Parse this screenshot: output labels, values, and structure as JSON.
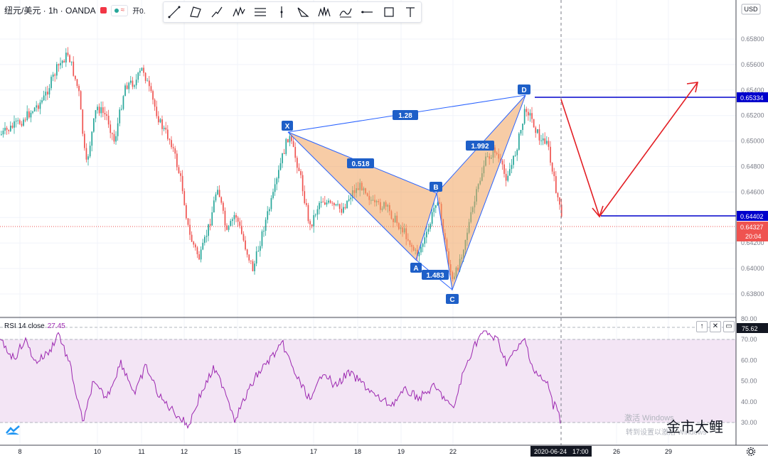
{
  "symbol": {
    "name": "纽元/美元 · 1h · OANDA",
    "open_label": "开0."
  },
  "toolbar": {
    "tools": [
      "trend-line-tool",
      "triangle-pattern-tool",
      "path-tool",
      "xabcd-pattern-tool",
      "fib-retracement-tool",
      "vertical-line-tool",
      "abcd-pattern-tool",
      "head-shoulders-tool",
      "elliott-wave-tool",
      "horizontal-ray-tool",
      "rectangle-tool",
      "text-tool"
    ]
  },
  "price_axis": {
    "currency": "USD",
    "ticks": [
      "0.65800",
      "0.65600",
      "0.65400",
      "0.65200",
      "0.65000",
      "0.64800",
      "0.64600",
      "0.64400",
      "0.64200",
      "0.64000",
      "0.63800"
    ],
    "labels": {
      "d_level": "0.65334",
      "target_level": "0.64402",
      "last_price": "0.64327",
      "countdown": "20:04"
    }
  },
  "rsi": {
    "title": "RSI 14 close",
    "value": "27.45",
    "ticks": [
      "80.00",
      "70.00",
      "60.00",
      "50.00",
      "40.00",
      "30.00"
    ],
    "badge": "75.62"
  },
  "time_axis": {
    "ticks": [
      "8",
      "10",
      "11",
      "12",
      "15",
      "17",
      "18",
      "19",
      "22",
      "26",
      "29"
    ],
    "cursor_date": "2020-06-24",
    "cursor_time": "17:00"
  },
  "pattern": {
    "points": {
      "x": "X",
      "a": "A",
      "b": "B",
      "c": "C",
      "d": "D"
    },
    "ratios": {
      "xd": "1.28",
      "xb": "0.518",
      "ac": "1.483",
      "bd": "1.992"
    }
  },
  "colors": {
    "up": "#26a69a",
    "down": "#ef5350",
    "pattern_fill": "#f0a35c",
    "pattern_line": "#2962ff",
    "level": "#0000cc",
    "arrow": "#e31e24",
    "rsi": "#9c27b0",
    "rsi_band": "#f3e5f5"
  },
  "watermark": {
    "line1": "金市大鲤",
    "line2": "转到设置以激活 Windows",
    "hint": "激活 Windows"
  }
}
